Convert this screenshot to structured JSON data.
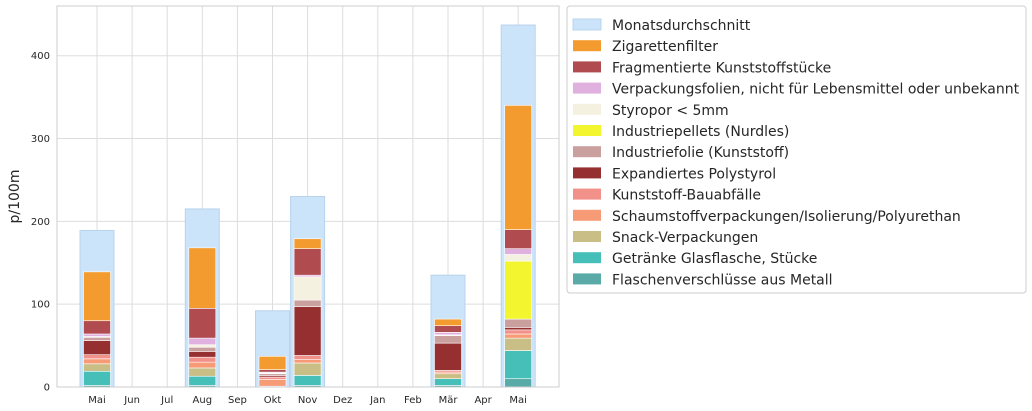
{
  "chart_data": {
    "type": "bar",
    "ylabel": "p/100m",
    "xlabel": "",
    "ylim": [
      0,
      460
    ],
    "yticks": [
      0,
      100,
      200,
      300,
      400
    ],
    "categories": [
      "Mai",
      "Jun",
      "Jul",
      "Aug",
      "Sep",
      "Okt",
      "Nov",
      "Dez",
      "Jan",
      "Feb",
      "Mär",
      "Apr",
      "Mai"
    ],
    "grid": true,
    "legend_position": "right",
    "monthly_average": {
      "name": "Monatsdurchschnitt",
      "color": "#cce4fa",
      "values": [
        189,
        null,
        null,
        215,
        null,
        92,
        230,
        null,
        null,
        null,
        135,
        null,
        437
      ]
    },
    "series": [
      {
        "name": "Flaschenverschlüsse aus Metall",
        "color": "#5aaaa8",
        "values": [
          2,
          0,
          0,
          2,
          0,
          1,
          2,
          0,
          0,
          0,
          2,
          0,
          10
        ]
      },
      {
        "name": "Getränke Glasflasche, Stücke",
        "color": "#47bfb9",
        "values": [
          17,
          0,
          0,
          11,
          0,
          0,
          12,
          0,
          0,
          0,
          8,
          0,
          34
        ]
      },
      {
        "name": "Snack-Verpackungen",
        "color": "#c9be85",
        "values": [
          9,
          0,
          0,
          10,
          0,
          0,
          15,
          0,
          0,
          0,
          6,
          0,
          15
        ]
      },
      {
        "name": "Schaumstoffverpackungen/Isolierung/Polyurethan",
        "color": "#f79a76",
        "values": [
          6,
          0,
          0,
          7,
          0,
          8,
          4,
          0,
          0,
          0,
          2,
          0,
          5
        ]
      },
      {
        "name": "Kunststoff-Bauabfälle",
        "color": "#f2918a",
        "values": [
          5,
          0,
          0,
          6,
          0,
          3,
          5,
          0,
          0,
          0,
          2,
          0,
          5
        ]
      },
      {
        "name": "Expandiertes Polystyrol",
        "color": "#962f30",
        "values": [
          17,
          0,
          0,
          7,
          0,
          2,
          59,
          0,
          0,
          0,
          33,
          0,
          3
        ]
      },
      {
        "name": "Industriefolie (Kunststoff)",
        "color": "#c9a09d",
        "values": [
          4,
          0,
          0,
          5,
          0,
          2,
          8,
          0,
          0,
          0,
          9,
          0,
          10
        ]
      },
      {
        "name": "Industriepellets (Nurdles)",
        "color": "#f3f52f",
        "values": [
          0,
          0,
          0,
          0,
          0,
          0,
          0,
          0,
          0,
          0,
          0,
          0,
          70
        ]
      },
      {
        "name": "Styropor < 5mm",
        "color": "#f5f1e1",
        "values": [
          1,
          0,
          0,
          3,
          0,
          1,
          28,
          0,
          0,
          0,
          1,
          0,
          8
        ]
      },
      {
        "name": "Verpackungsfolien, nicht für Lebensmittel oder unbekannt",
        "color": "#e0b1de",
        "values": [
          3,
          0,
          0,
          8,
          0,
          1,
          2,
          0,
          0,
          0,
          3,
          0,
          7
        ]
      },
      {
        "name": "Fragmentierte Kunststoffstücke",
        "color": "#b04b50",
        "values": [
          16,
          0,
          0,
          36,
          0,
          3,
          32,
          0,
          0,
          0,
          8,
          0,
          23
        ]
      },
      {
        "name": "Zigarettenfilter",
        "color": "#f49b2f",
        "values": [
          59,
          0,
          0,
          73,
          0,
          16,
          12,
          0,
          0,
          0,
          8,
          0,
          150
        ]
      }
    ]
  }
}
